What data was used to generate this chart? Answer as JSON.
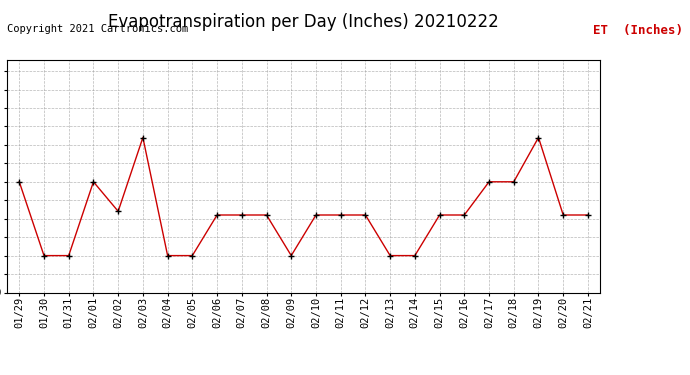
{
  "title": "Evapotranspiration per Day (Inches) 20210222",
  "copyright_text": "Copyright 2021 Cartronics.com",
  "legend_label": "ET  (Inches)",
  "dates": [
    "01/29",
    "01/30",
    "01/31",
    "02/01",
    "02/02",
    "02/03",
    "02/04",
    "02/05",
    "02/06",
    "02/07",
    "02/08",
    "02/09",
    "02/10",
    "02/11",
    "02/12",
    "02/13",
    "02/14",
    "02/15",
    "02/16",
    "02/17",
    "02/18",
    "02/19",
    "02/20",
    "02/21"
  ],
  "values": [
    0.03,
    0.01,
    0.01,
    0.03,
    0.022,
    0.042,
    0.01,
    0.01,
    0.021,
    0.021,
    0.021,
    0.01,
    0.021,
    0.021,
    0.021,
    0.01,
    0.01,
    0.021,
    0.021,
    0.03,
    0.03,
    0.042,
    0.021,
    0.021
  ],
  "line_color": "#cc0000",
  "marker_color": "#000000",
  "background_color": "#ffffff",
  "grid_color": "#999999",
  "ylim": [
    0.0,
    0.063
  ],
  "yticks": [
    0.0,
    0.005,
    0.01,
    0.015,
    0.02,
    0.025,
    0.03,
    0.035,
    0.04,
    0.045,
    0.05,
    0.055,
    0.06
  ],
  "title_fontsize": 12,
  "copyright_fontsize": 7.5,
  "legend_fontsize": 9,
  "tick_fontsize": 7.5,
  "border_color": "#000000"
}
